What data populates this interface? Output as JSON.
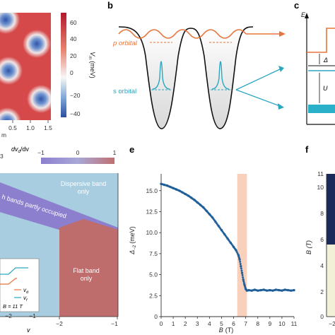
{
  "panel_labels": {
    "b": "b",
    "c": "c",
    "e": "e",
    "f": "f"
  },
  "panel_a_fragment": {
    "colorbar_label": "V",
    "colorbar_label_sub": "m",
    "colorbar_unit": "(meV)",
    "colorbar_ticks": [
      "60",
      "40",
      "20",
      "0",
      "−20",
      "−40"
    ],
    "x_ticks": [
      "0.5",
      "1.0",
      "1.5"
    ],
    "x_label_fragment": "m",
    "colors": {
      "high": "#c0262b",
      "mid": "#f4f4f4",
      "low": "#2f54a8"
    }
  },
  "panel_b": {
    "p_orbital_label": "p orbital",
    "s_orbital_label": "s orbital",
    "colors": {
      "p": "#e8743b",
      "s": "#2aa6c0",
      "well": "#111111"
    }
  },
  "panel_c_fragment": {
    "energy_axis_label": "E",
    "delta_fragment": "Δ",
    "u_fragment": "U"
  },
  "panel_d_fragment": {
    "colorbar_title": "dv",
    "colorbar_title_sub": "d",
    "colorbar_title_suffix": "/dv",
    "colorbar_ticks": [
      "−1",
      "0",
      "1"
    ],
    "region_dispersive": [
      "Dispersive band",
      "only"
    ],
    "region_both": "h bands partly occupied",
    "region_flat": [
      "Flat band",
      "only"
    ],
    "inset_legend": [
      {
        "symbol": "v",
        "sub": "d",
        "color": "#e8743b"
      },
      {
        "symbol": "v",
        "sub": "f",
        "color": "#2aa6c0"
      }
    ],
    "inset_field": "B = 11 T",
    "inset_x_ticks": [
      "−2",
      "−1"
    ],
    "x_ticks": [
      "−2",
      "−1"
    ],
    "x_label": "v",
    "left_tick_fragment": "3",
    "colors": {
      "dispersive": "#a8cde0",
      "flat": "#c07070",
      "both": "#8c7fce"
    }
  },
  "panel_e": {
    "y_label_symbol": "Δ",
    "y_label_sub": "−2",
    "y_label_unit": "(meV)",
    "x_label_symbol": "B",
    "x_label_unit": "(T)",
    "colors": {
      "points": "#1f5f99",
      "shade": "#f8c8b0"
    }
  },
  "panel_f_fragment": {
    "y_label": "B (T)",
    "y_ticks": [
      "11",
      "10",
      "8",
      "6",
      "4",
      "2",
      "0"
    ],
    "x_tick_fragment": "−2"
  },
  "chart_data": {
    "type": "scatter",
    "xlabel": "B (T)",
    "ylabel": "Δ−2 (meV)",
    "xlim": [
      0,
      11
    ],
    "ylim": [
      0,
      17
    ],
    "x_ticks": [
      0,
      1,
      2,
      3,
      4,
      5,
      6,
      7,
      8,
      9,
      10,
      11
    ],
    "y_ticks": [
      0,
      2.5,
      5.0,
      7.5,
      10.0,
      12.5,
      15.0
    ],
    "y_tick_labels": [
      "0",
      "2.5",
      "5.0",
      "7.5",
      "10.0",
      "12.5",
      "15.0"
    ],
    "shaded_band": [
      6.3,
      7.1
    ],
    "series": [
      {
        "x": [
          0.0,
          0.25,
          0.5,
          0.75,
          1.0,
          1.25,
          1.5,
          1.75,
          2.0,
          2.25,
          2.5,
          2.75,
          3.0,
          3.25,
          3.5,
          3.75,
          4.0,
          4.25,
          4.5,
          4.75,
          5.0,
          5.25,
          5.5,
          5.75,
          6.0,
          6.2,
          6.4,
          6.5,
          6.6,
          6.7,
          6.8,
          6.9,
          7.0,
          7.1,
          7.25,
          7.5,
          7.75,
          8.0,
          8.25,
          8.5,
          8.75,
          9.0,
          9.25,
          9.5,
          9.75,
          10.0,
          10.25,
          10.5,
          10.75,
          11.0
        ],
        "y": [
          15.8,
          15.7,
          15.6,
          15.45,
          15.3,
          15.15,
          15.0,
          14.8,
          14.6,
          14.4,
          14.15,
          13.9,
          13.6,
          13.3,
          13.0,
          12.6,
          12.2,
          11.8,
          11.3,
          10.8,
          10.3,
          9.8,
          9.3,
          8.8,
          8.3,
          7.9,
          7.3,
          6.8,
          6.0,
          5.2,
          4.4,
          3.8,
          3.3,
          3.1,
          3.15,
          3.1,
          3.2,
          3.1,
          3.15,
          3.2,
          3.1,
          3.15,
          3.1,
          3.2,
          3.15,
          3.1,
          3.2,
          3.15,
          3.1,
          3.15
        ]
      }
    ]
  }
}
